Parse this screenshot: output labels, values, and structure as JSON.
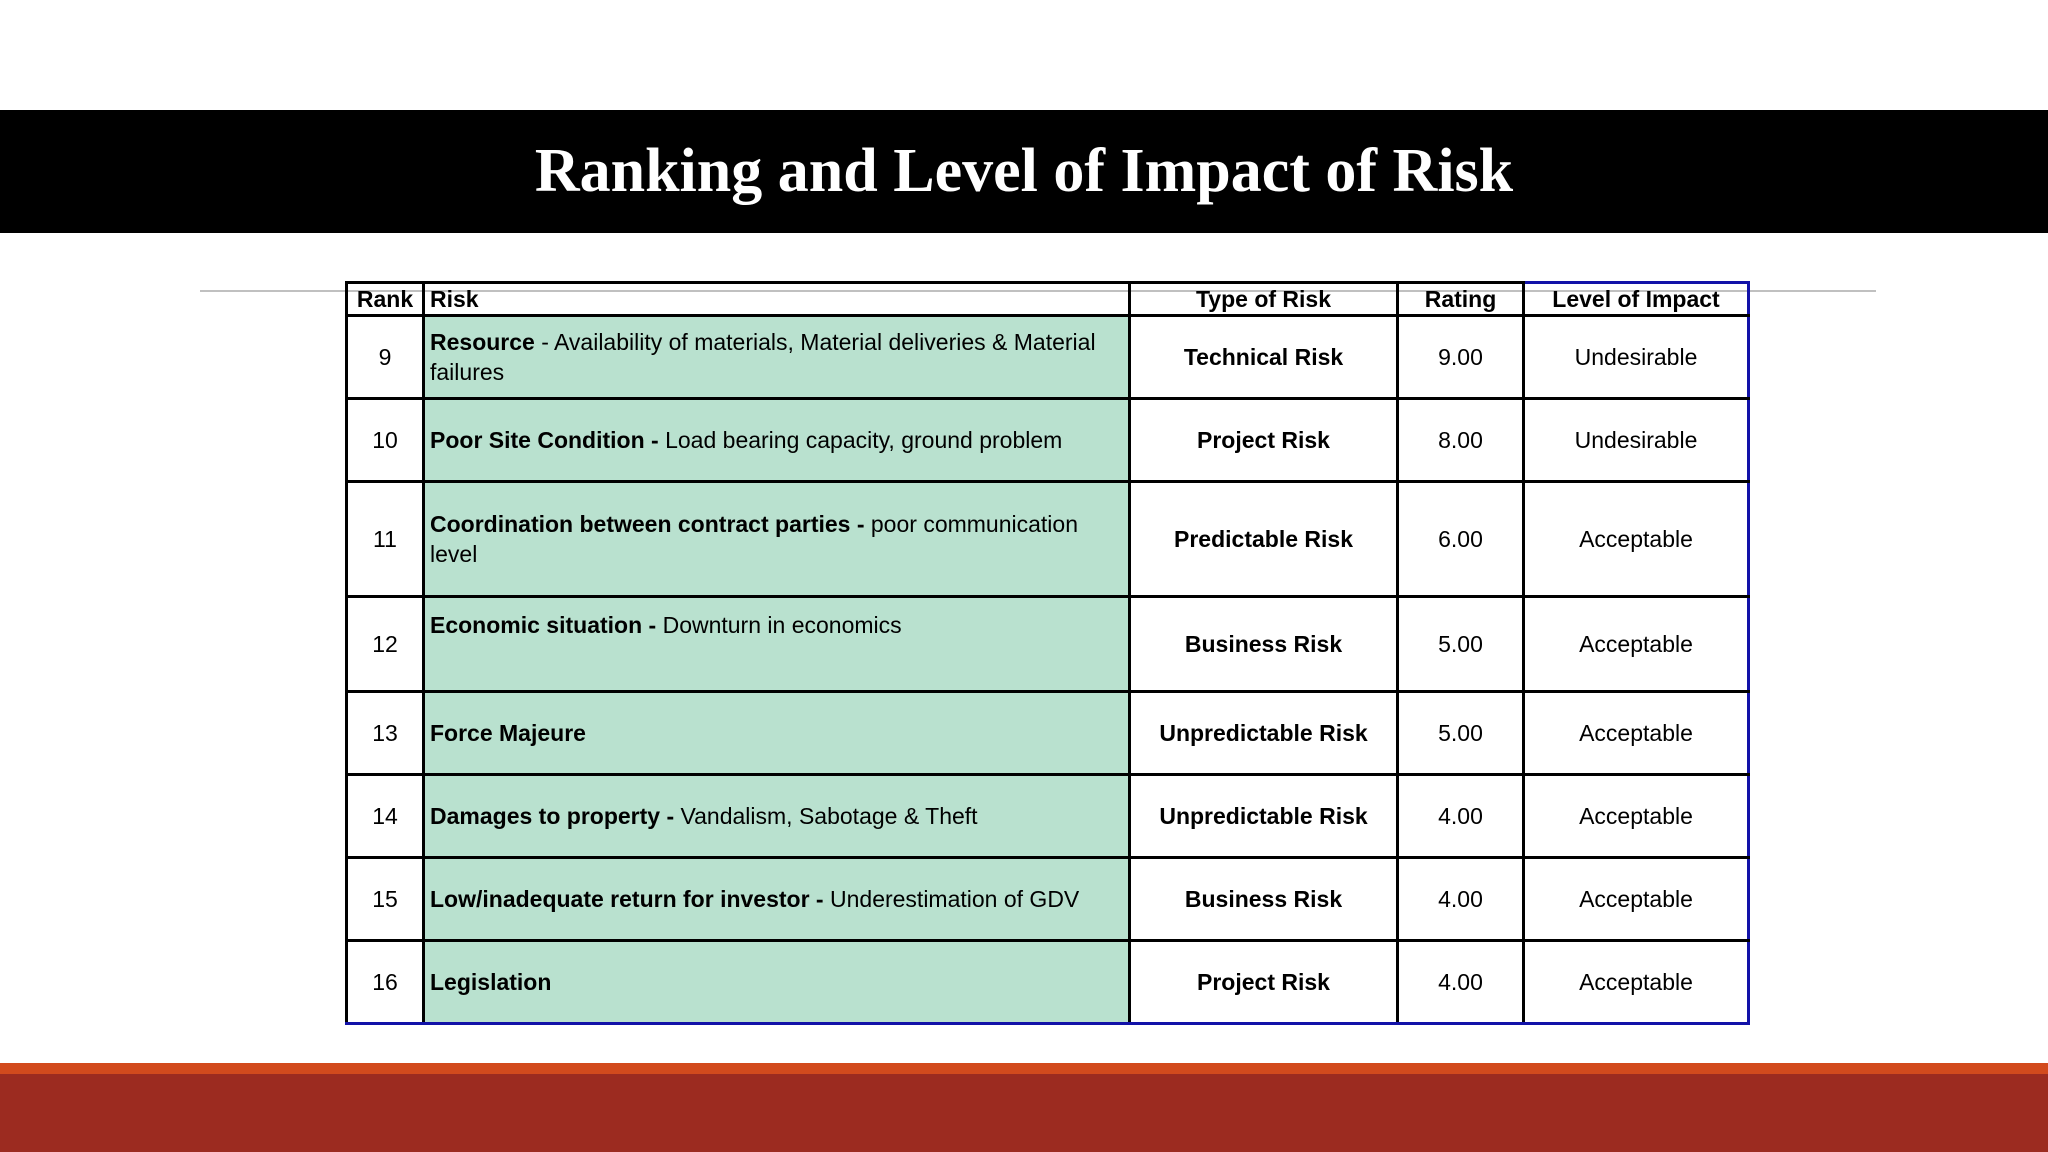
{
  "slide": {
    "title": "Ranking and Level of Impact of Risk",
    "colors": {
      "title_bar": "#000000",
      "risk_cell": "#b9e1cf",
      "band_accent": "#d24a1d",
      "band": "#9c2b20",
      "impact_border": "#1212a8"
    }
  },
  "table": {
    "headers": {
      "rank": "Rank",
      "risk": "Risk",
      "type": "Type of Risk",
      "rating": "Rating",
      "impact": "Level of Impact"
    },
    "rows": [
      {
        "rank": "9",
        "risk_bold": "Resource",
        "risk_rest": " - Availability of materials, Material deliveries &  Material failures",
        "type": "Technical Risk",
        "rating": "9.00",
        "impact": "Undesirable"
      },
      {
        "rank": "10",
        "risk_bold": "Poor Site Condition -",
        "risk_rest": " Load bearing capacity, ground problem",
        "type": "Project Risk",
        "rating": "8.00",
        "impact": "Undesirable"
      },
      {
        "rank": "11",
        "risk_bold": "Coordination between contract parties -",
        "risk_rest": " poor communication level",
        "type": "Predictable Risk",
        "rating": "6.00",
        "impact": "Acceptable"
      },
      {
        "rank": "12",
        "risk_bold": "Economic situation -",
        "risk_rest": " Downturn in economics",
        "type": "Business Risk",
        "rating": "5.00",
        "impact": "Acceptable"
      },
      {
        "rank": "13",
        "risk_bold": "Force Majeure",
        "risk_rest": "",
        "type": "Unpredictable Risk",
        "rating": "5.00",
        "impact": "Acceptable"
      },
      {
        "rank": "14",
        "risk_bold": "Damages to property -",
        "risk_rest": " Vandalism, Sabotage & Theft",
        "type": "Unpredictable Risk",
        "rating": "4.00",
        "impact": "Acceptable"
      },
      {
        "rank": "15",
        "risk_bold": "Low/inadequate return for investor -",
        "risk_rest": " Underestimation of GDV",
        "type": "Business Risk",
        "rating": "4.00",
        "impact": "Acceptable"
      },
      {
        "rank": "16",
        "risk_bold": "Legislation",
        "risk_rest": "",
        "type": "Project Risk",
        "rating": "4.00",
        "impact": "Acceptable"
      }
    ]
  }
}
